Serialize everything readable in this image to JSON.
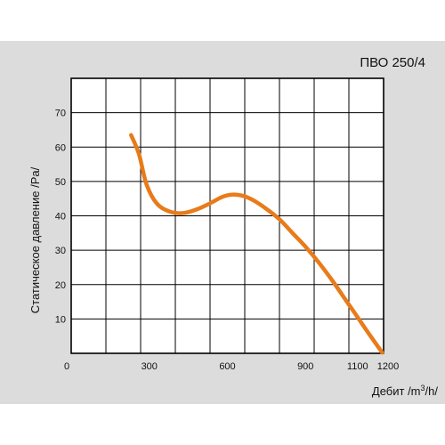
{
  "chart_data": {
    "type": "line",
    "title": "ПВО 250/4",
    "xlabel_main": "Дебит /m",
    "xlabel_sup": "3",
    "xlabel_tail": "/h/",
    "ylabel": "Статическое давление /Pa/",
    "xlim": [
      0,
      1200
    ],
    "ylim": [
      0,
      80
    ],
    "x_ticks": [
      "0",
      "300",
      "600",
      "900",
      "1100",
      "1200"
    ],
    "x_tick_values": [
      0,
      300,
      600,
      900,
      1100,
      1200
    ],
    "y_ticks": [
      "10",
      "20",
      "30",
      "40",
      "50",
      "60",
      "70"
    ],
    "y_tick_values": [
      10,
      20,
      30,
      40,
      50,
      60,
      70
    ],
    "grid": true,
    "series": [
      {
        "color": "#e87b1a",
        "x": [
          230,
          260,
          290,
          330,
          380,
          430,
          480,
          530,
          580,
          620,
          660,
          700,
          750,
          800,
          850,
          900,
          950,
          1000,
          1050,
          1100,
          1150,
          1195
        ],
        "y": [
          63.5,
          58,
          49,
          43.5,
          41.2,
          40.8,
          41.8,
          43.5,
          45.5,
          46.2,
          45.8,
          44.5,
          42,
          39,
          35,
          31,
          26.5,
          21.5,
          16,
          10.5,
          5,
          0.2
        ]
      }
    ]
  }
}
